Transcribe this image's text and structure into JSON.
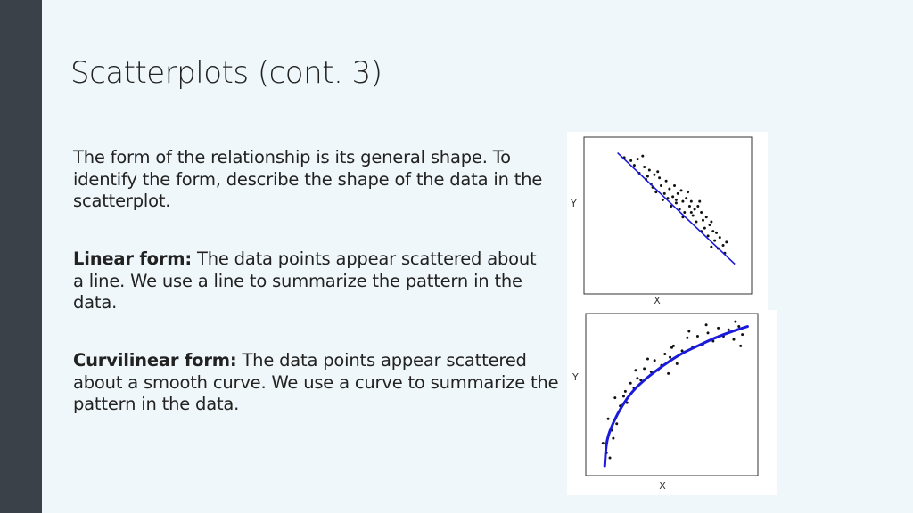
{
  "slide": {
    "title": "Scatterplots (cont. 3)",
    "intro": "The form of the relationship is its general shape. To identify the form, describe the shape of the data in the scatterplot.",
    "linear": {
      "label": "Linear form:",
      "text": " The data points appear scattered about a line. We use a line to summarize the pattern in the data."
    },
    "curvilinear": {
      "label": "Curvilinear form:",
      "text": " The data points appear scattered about a smooth curve. We use a curve to summarize the pattern in the data."
    }
  },
  "colors": {
    "left_bar": "#3b4149",
    "background": "#f0f7fa",
    "fit_line": "#1a1adb"
  },
  "chart_data": [
    {
      "type": "scatter",
      "title": "",
      "xlabel": "X",
      "ylabel": "Y",
      "xlim": [
        0,
        10
      ],
      "ylim": [
        0,
        10
      ],
      "ticks": false,
      "points": [
        [
          2.4,
          8.7
        ],
        [
          2.8,
          8.5
        ],
        [
          3.2,
          8.6
        ],
        [
          3.0,
          8.2
        ],
        [
          3.6,
          8.1
        ],
        [
          3.3,
          7.7
        ],
        [
          3.9,
          7.9
        ],
        [
          4.2,
          7.6
        ],
        [
          3.7,
          7.3
        ],
        [
          4.0,
          7.0
        ],
        [
          4.5,
          7.4
        ],
        [
          4.1,
          6.8
        ],
        [
          4.6,
          6.9
        ],
        [
          4.9,
          7.2
        ],
        [
          4.3,
          6.5
        ],
        [
          4.8,
          6.4
        ],
        [
          5.1,
          6.7
        ],
        [
          5.4,
          6.9
        ],
        [
          5.0,
          6.1
        ],
        [
          5.3,
          6.2
        ],
        [
          5.6,
          6.4
        ],
        [
          5.8,
          6.6
        ],
        [
          5.5,
          5.8
        ],
        [
          5.9,
          5.9
        ],
        [
          6.1,
          6.1
        ],
        [
          6.3,
          5.6
        ],
        [
          5.7,
          5.4
        ],
        [
          6.4,
          5.9
        ],
        [
          6.6,
          5.4
        ],
        [
          6.0,
          5.2
        ],
        [
          6.8,
          5.6
        ],
        [
          6.5,
          5.0
        ],
        [
          7.0,
          5.2
        ],
        [
          7.1,
          4.7
        ],
        [
          6.7,
          4.6
        ],
        [
          7.3,
          4.9
        ],
        [
          7.5,
          4.4
        ],
        [
          7.2,
          4.2
        ],
        [
          7.7,
          4.0
        ],
        [
          7.4,
          3.7
        ],
        [
          7.9,
          3.9
        ],
        [
          7.8,
          3.4
        ],
        [
          8.1,
          3.6
        ],
        [
          8.3,
          3.1
        ],
        [
          8.0,
          2.9
        ],
        [
          8.5,
          3.3
        ],
        [
          7.6,
          3.0
        ],
        [
          8.4,
          2.6
        ],
        [
          6.2,
          6.5
        ],
        [
          5.2,
          5.6
        ],
        [
          4.4,
          7.8
        ],
        [
          3.5,
          8.8
        ],
        [
          6.9,
          5.9
        ],
        [
          5.9,
          4.9
        ],
        [
          7.0,
          4.0
        ],
        [
          4.7,
          6.0
        ],
        [
          3.8,
          7.5
        ],
        [
          6.4,
          5.2
        ],
        [
          5.5,
          6.0
        ],
        [
          7.6,
          4.6
        ]
      ],
      "fit": {
        "kind": "linear",
        "from": [
          2.0,
          9.0
        ],
        "to": [
          9.0,
          1.9
        ]
      }
    },
    {
      "type": "scatter",
      "title": "",
      "xlabel": "X",
      "ylabel": "Y",
      "xlim": [
        0,
        10
      ],
      "ylim": [
        0,
        10
      ],
      "ticks": false,
      "points": [
        [
          1.0,
          2.0
        ],
        [
          1.2,
          1.4
        ],
        [
          1.5,
          2.8
        ],
        [
          1.3,
          3.5
        ],
        [
          1.8,
          3.2
        ],
        [
          2.0,
          4.3
        ],
        [
          1.7,
          4.8
        ],
        [
          2.3,
          5.2
        ],
        [
          2.6,
          5.7
        ],
        [
          2.4,
          4.5
        ],
        [
          3.0,
          6.0
        ],
        [
          2.8,
          5.4
        ],
        [
          3.4,
          6.6
        ],
        [
          3.2,
          5.9
        ],
        [
          3.8,
          6.4
        ],
        [
          4.0,
          7.1
        ],
        [
          4.4,
          6.8
        ],
        [
          4.6,
          7.5
        ],
        [
          4.9,
          7.3
        ],
        [
          5.1,
          8.0
        ],
        [
          5.3,
          6.9
        ],
        [
          5.6,
          7.7
        ],
        [
          5.9,
          8.5
        ],
        [
          6.2,
          7.9
        ],
        [
          6.5,
          8.6
        ],
        [
          6.8,
          8.1
        ],
        [
          7.1,
          8.8
        ],
        [
          7.4,
          8.3
        ],
        [
          7.7,
          9.1
        ],
        [
          8.0,
          8.6
        ],
        [
          8.3,
          9.0
        ],
        [
          8.6,
          8.4
        ],
        [
          8.9,
          9.2
        ],
        [
          9.1,
          8.7
        ],
        [
          6.0,
          8.9
        ],
        [
          7.0,
          9.3
        ],
        [
          5.0,
          7.9
        ],
        [
          4.2,
          6.5
        ],
        [
          3.6,
          7.2
        ],
        [
          2.9,
          6.5
        ],
        [
          2.2,
          4.9
        ],
        [
          1.6,
          2.3
        ],
        [
          1.4,
          1.1
        ],
        [
          8.7,
          9.5
        ],
        [
          9.0,
          8.0
        ],
        [
          4.8,
          6.3
        ]
      ],
      "fit": {
        "kind": "curve",
        "points": [
          [
            1.1,
            0.6
          ],
          [
            1.2,
            2.2
          ],
          [
            1.6,
            3.3
          ],
          [
            2.1,
            4.3
          ],
          [
            2.7,
            5.2
          ],
          [
            3.5,
            6.0
          ],
          [
            4.5,
            6.8
          ],
          [
            5.5,
            7.5
          ],
          [
            6.5,
            8.0
          ],
          [
            7.5,
            8.5
          ],
          [
            8.5,
            8.9
          ],
          [
            9.4,
            9.2
          ]
        ]
      }
    }
  ]
}
